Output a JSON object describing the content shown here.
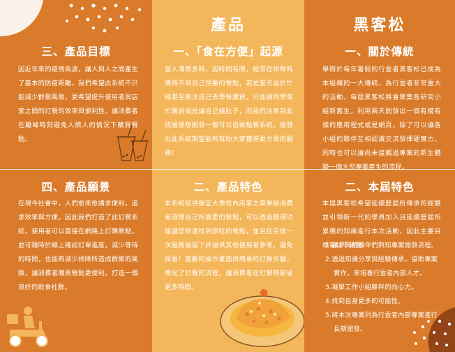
{
  "panel1": {
    "sec1_title": "三、產品目標",
    "sec1_body": "因近年來的疫情風波，讓人與人之間產生了基本的防疫距離。我們希望此系統不只能減少群聚風險，更希望提升使用者與店家之間的訂餐的效率與便利性。讓消費者在離峰時刻避免人擠人的情況下購買餐點。",
    "sec2_title": "四、產品願景",
    "sec2_body": "在現今社會中，人們愈來愈講求便利，追求效率與方便，因此我們打造了此訂餐系統，使用者可以直接在網路上訂購餐點，並可隨時於線上確認訂單進度，減少等待的時間，也能夠減少排隊所造成群聚的風險，讓消費者購買餐點更便利，打造一個良好的飲食社群。"
  },
  "panel2": {
    "header": "產品",
    "sec1_title": "一、「食在方便」起源",
    "sec1_body": "當人潮眾多時，因時間有限，經常在排隊時購買不到自己想要的餐點，若是當天過於忙碌甚至無法自己去學餐購買，只能請同學幫忙購買或是讓自己餓肚子，而我們注意到此問題便想開發一個可以自動點餐系統，開發出此系統期望能夠幫助大家獲得更方便的服務！",
    "sec2_title": "二、產品特色",
    "sec2_body": "本系統提供靜宜大學校內店家之菜單給消費者選擇自己所喜愛的餐點，可以透過篩選功能讓您快速找到想吃的餐點，並且在完成一次服務後留下評語供其他使用者參考，避免踩雷！直觀的操作畫面與簡單的訂餐步驟，簡化了訂餐的流程，讓消費者在訂餐時節省更多時間。"
  },
  "panel3": {
    "header": "黑客松",
    "sec1_title": "一、關於傳統",
    "sec1_body": "舉辦於每年暑假的行雲者黑客松已成為本組織的一大傳統，為行雲者非常重大的活動。每屆黑客松將會聚集各研究小組新舊生，利用兩天開發出一個有模有樣的應用程式或是網頁，除了可以讓各小組的夥伴互相認識交流發揮硬實力，同時也可以讓尚未接觸過專案的新生體驗一個大型專案產生的流程。",
    "sec2_title": "二、本屆特色",
    "sec2_intro": "本屆黑客松希望延續歷屆所傳承的經驗並引領新一代的學員加入且延續歷屆所累積的知識進行本次活動，因此主要目標有以下幾點：",
    "goals": [
      "1.讓參與的夥伴們熟知專案開發流程。",
      "2.透過知識分享與經驗傳承，協助專案實作，來培養行雲者內部人才。",
      "3.凝聚工作小組夥伴的向心力。",
      "4.找到自身更多的可能性。",
      "5.將本次專案列為行雲者內部專案進行長期開發。"
    ]
  },
  "colors": {
    "orange": "#d97b2a",
    "light_orange": "#f4b65a",
    "white": "#ffffff"
  },
  "icons": [
    "drinks-icon",
    "scooter-delivery-icon",
    "fried-rice-plate-icon"
  ]
}
